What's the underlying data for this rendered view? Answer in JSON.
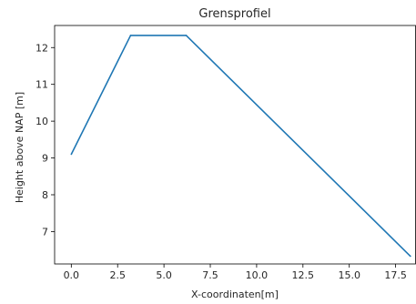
{
  "chart_data": {
    "type": "line",
    "title": "Grensprofiel",
    "xlabel": "X-coordinaten[m]",
    "ylabel": "Height above NAP [m]",
    "xlim": [
      -0.9,
      18.6
    ],
    "ylim": [
      6.12,
      12.6
    ],
    "xticks": [
      0.0,
      2.5,
      5.0,
      7.5,
      10.0,
      12.5,
      15.0,
      17.5
    ],
    "xtick_labels": [
      "0.0",
      "2.5",
      "5.0",
      "7.5",
      "10.0",
      "12.5",
      "15.0",
      "17.5"
    ],
    "yticks": [
      7,
      8,
      9,
      10,
      11,
      12
    ],
    "ytick_labels": [
      "7",
      "8",
      "9",
      "10",
      "11",
      "12"
    ],
    "grid": false,
    "series": [
      {
        "color": "#1f77b4",
        "x": [
          0.0,
          3.2,
          6.2,
          18.3
        ],
        "y": [
          9.1,
          12.33,
          12.33,
          6.33
        ]
      }
    ]
  }
}
